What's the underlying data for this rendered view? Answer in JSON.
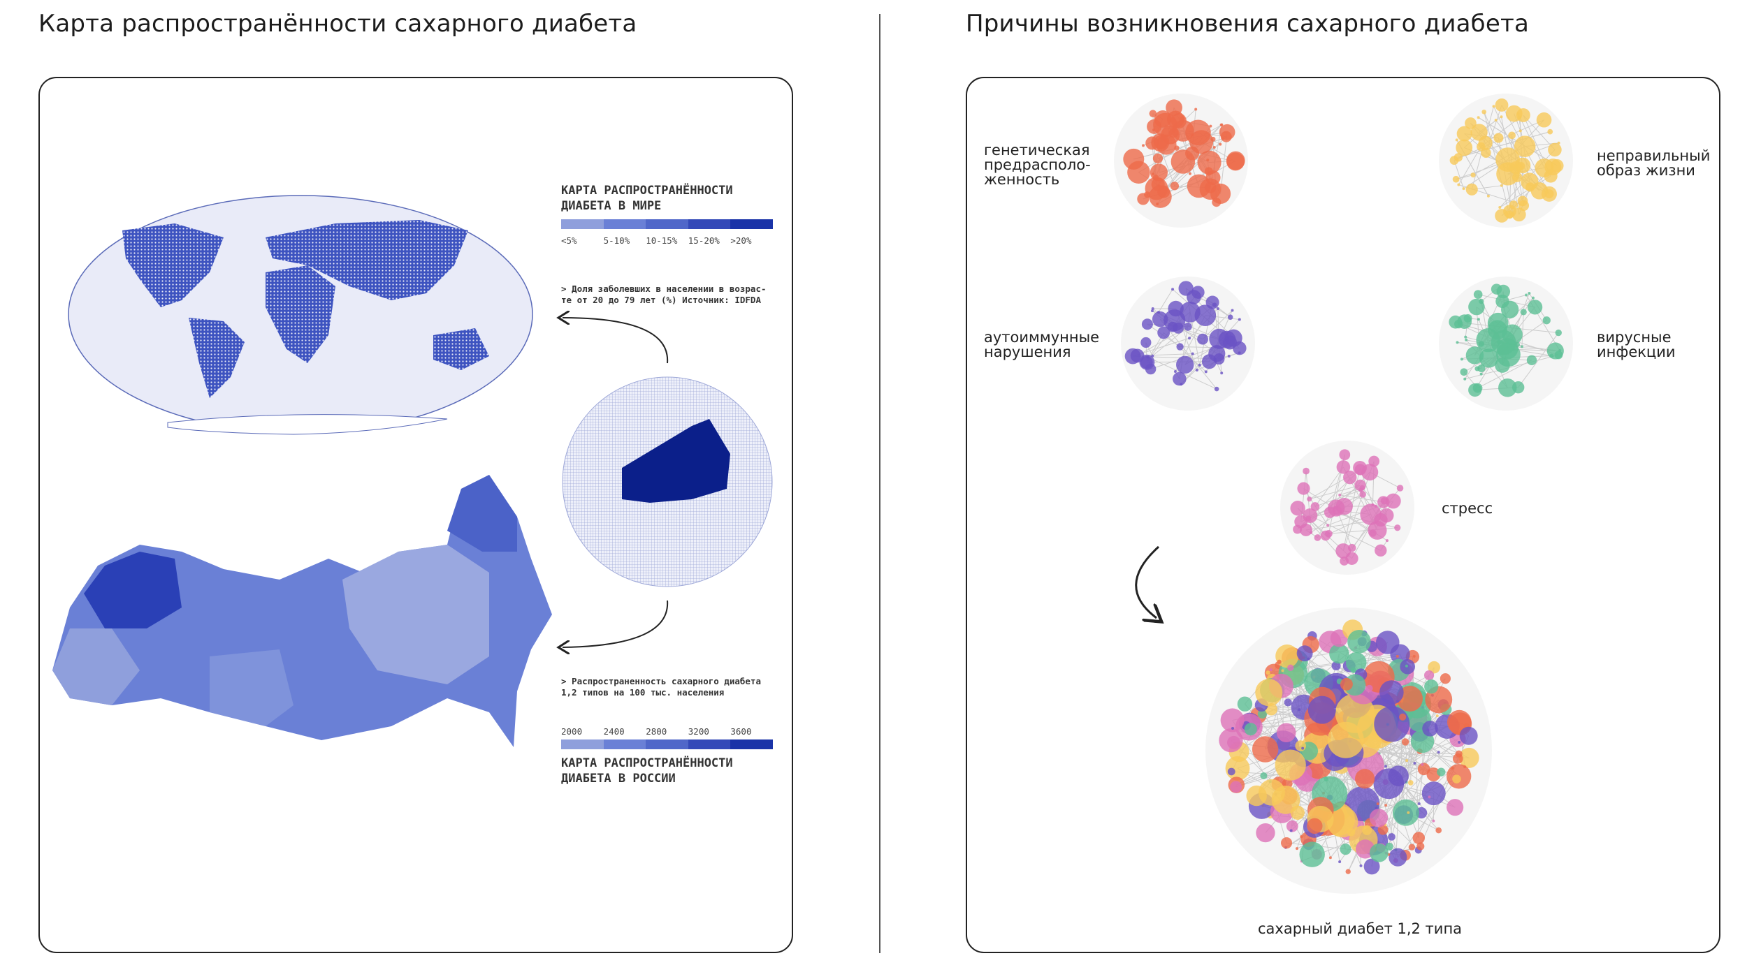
{
  "left": {
    "title": "Карта распространённости сахарного диабета",
    "world_legend": {
      "title_line1": "КАРТА РАСПРОСТРАНЁННОСТИ",
      "title_line2": "ДИАБЕТА В МИРЕ",
      "colors": [
        "#8f9fdc",
        "#6a80d6",
        "#5067c9",
        "#3449b8",
        "#1a33a8"
      ],
      "labels": [
        "<5%",
        "5-10%",
        "10-15%",
        "15-20%",
        ">20%"
      ],
      "note_line1": "> Доля заболевших в населении в возрас-",
      "note_line2": "те от 20 до 79 лет (%) Источник: IDFDA"
    },
    "russia_legend": {
      "note_line1": "> Распространенность сахарного диабета",
      "note_line2": "1,2 типов на 100 тыс. населения",
      "labels": [
        "2000",
        "2400",
        "2800",
        "3200",
        "3600"
      ],
      "colors": [
        "#8f9fdc",
        "#6a80d6",
        "#5067c9",
        "#3449b8",
        "#1a33a8"
      ],
      "title_line1": "КАРТА РАСПРОСТРАНЁННОСТИ",
      "title_line2": "ДИАБЕТА В РОССИИ"
    }
  },
  "right": {
    "title": "Причины возникновения сахарного диабета",
    "clusters": [
      {
        "label": "генетическая\nпредрасполо-\nженность",
        "color": "#ee6a4a"
      },
      {
        "label": "неправильный\nобраз жизни",
        "color": "#f7c95a"
      },
      {
        "label": "аутоиммунные\nнарушения",
        "color": "#6a52c4"
      },
      {
        "label": "вирусные\nинфекции",
        "color": "#5cbf95"
      },
      {
        "label": "стресс",
        "color": "#dd72b8"
      }
    ],
    "result_label": "сахарный диабет 1,2 типа"
  }
}
